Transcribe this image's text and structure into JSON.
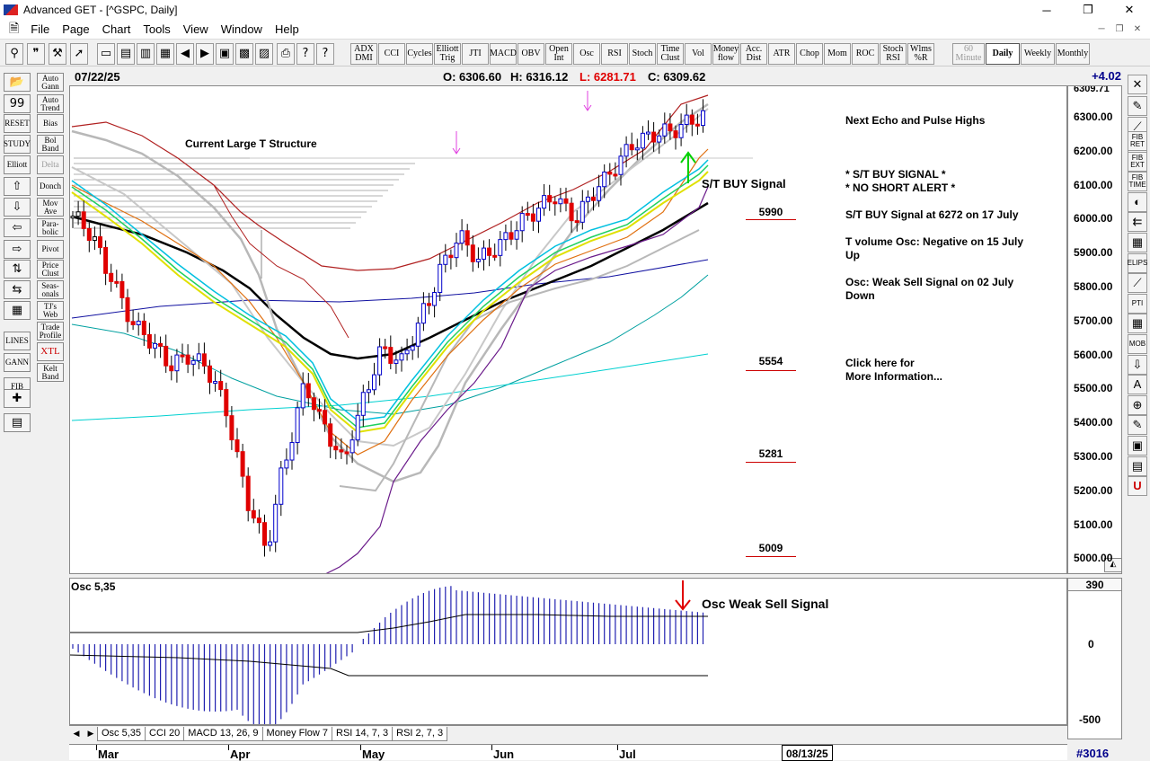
{
  "window": {
    "title": "Advanced GET - [^GSPC, Daily]",
    "min": "─",
    "max": "❐",
    "close": "✕"
  },
  "menu": [
    "File",
    "Page",
    "Chart",
    "Tools",
    "View",
    "Window",
    "Help"
  ],
  "toolbar": {
    "studies": [
      "ADX\nDMI",
      "CCI",
      "Cycles",
      "Elliott\nTrig",
      "JTI",
      "MACD",
      "OBV",
      "Open\nInt",
      "Osc",
      "RSI",
      "Stoch",
      "Time\nClust",
      "Vol",
      "Money\nflow",
      "Acc.\nDist",
      "ATR",
      "Chop",
      "Mom",
      "ROC",
      "Stoch\nRSI",
      "Wlms\n%R"
    ],
    "timeframes": [
      "60\nMinute",
      "Daily",
      "Weekly",
      "Monthly"
    ],
    "active_timeframe": "Daily"
  },
  "leftbar": [
    "Auto\nGann",
    "Auto\nTrend",
    "RESET",
    "Bias",
    "STUDY",
    "Bol\nBand",
    "Elliott",
    "Delta",
    "Donch",
    "Mov\nAve",
    "Para-\nbolic",
    "Pivot",
    "Price\nClust",
    "Seas-\nonals",
    "TJ's\nWeb",
    "Trade\nProfile",
    "LINES",
    "XTL",
    "GANN",
    "Kelt\nBand",
    "FIB"
  ],
  "rightbar": [
    "FIB\nRET",
    "FIB\nEXT",
    "FIB\nTIME",
    "PTI",
    "MOB",
    "ELIPS"
  ],
  "infobar": {
    "date": "07/22/25",
    "open": "O: 6306.60",
    "high": "H: 6316.12",
    "low": "L: 6281.71",
    "close": "C: 6309.62",
    "change": "+4.02"
  },
  "chart": {
    "annotations": {
      "large_t": "Current Large T Structure",
      "st_buy": "S/T BUY Signal",
      "next_echo": "Next Echo and Pulse Highs",
      "signals": "* S/T BUY SIGNAL *\n* NO SHORT ALERT *",
      "st_buy_at": "S/T BUY Signal at 6272 on 17 July",
      "tvol": "T volume Osc: Negative on 15 July\nUp",
      "osc_weak": "Osc: Weak Sell Signal on 02 July\nDown",
      "click": "Click here for\nMore Information..."
    },
    "levels": [
      "5990",
      "5554",
      "5281",
      "5009"
    ],
    "price_ticks": [
      "6300.00",
      "6200.00",
      "6100.00",
      "6000.00",
      "5900.00",
      "5800.00",
      "5700.00",
      "5600.00",
      "5500.00",
      "5400.00",
      "5300.00",
      "5200.00",
      "5100.00",
      "5000.00"
    ],
    "last_price_label": "6309.71"
  },
  "osc": {
    "title": "Osc 5,35",
    "signal_label": "Osc Weak Sell Signal",
    "value": "390",
    "ticks": [
      "0",
      "-500"
    ]
  },
  "tabs": [
    "Osc 5,35",
    "CCI 20",
    "MACD 13, 26, 9",
    "Money Flow 7",
    "RSI 14, 7, 3",
    "RSI 2, 7, 3"
  ],
  "dates": {
    "months": [
      "Mar",
      "Apr",
      "May",
      "Jun",
      "Jul"
    ],
    "current": "08/13/25",
    "bar_num": "#3016"
  },
  "colors": {
    "up_candle": "#0000cc",
    "down_candle": "#e00000",
    "ma_black": "#000000",
    "ma_blue": "#1010a0",
    "ma_teal": "#007070",
    "ma_cyan": "#00d0d0"
  }
}
